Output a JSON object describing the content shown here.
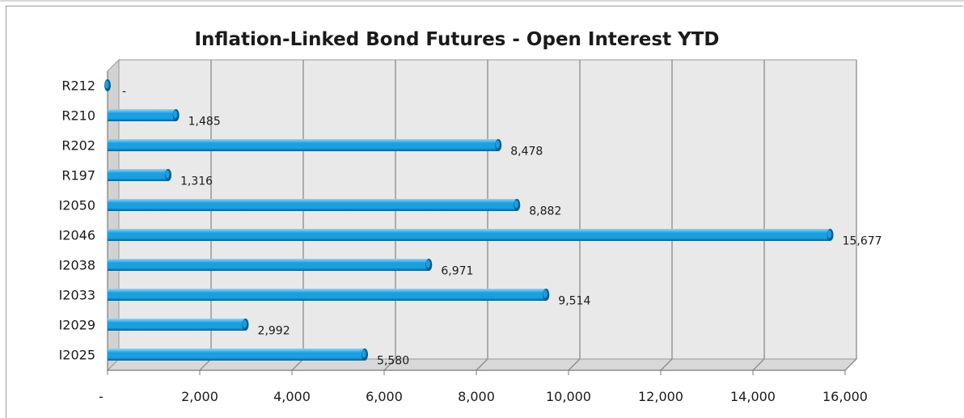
{
  "chart_data": {
    "type": "bar",
    "orientation": "horizontal",
    "title": "Inflation-Linked Bond Futures - Open Interest YTD",
    "categories": [
      "R212",
      "R210",
      "R202",
      "R197",
      "I2050",
      "I2046",
      "I2038",
      "I2033",
      "I2029",
      "I2025"
    ],
    "values": [
      0,
      1485,
      8478,
      1316,
      8882,
      15677,
      6971,
      9514,
      2992,
      5580
    ],
    "data_labels": [
      "-",
      "1,485",
      "8,478",
      "1,316",
      "8,882",
      "15,677",
      "6,971",
      "9,514",
      "2,992",
      "5,580"
    ],
    "xlim": [
      0,
      16000
    ],
    "xticks": [
      0,
      2000,
      4000,
      6000,
      8000,
      10000,
      12000,
      14000,
      16000
    ],
    "xtick_labels": [
      "-",
      "2,000",
      "4,000",
      "6,000",
      "8,000",
      "10,000",
      "12,000",
      "14,000",
      "16,000"
    ],
    "grid": true,
    "legend": "none",
    "colors": {
      "bar": "#1a9fe0",
      "bar_highlight": "#8fd6ff",
      "bar_shadow": "#0a5f94",
      "wall": "#e9e9e9",
      "gridline": "#8c8c8c"
    }
  }
}
